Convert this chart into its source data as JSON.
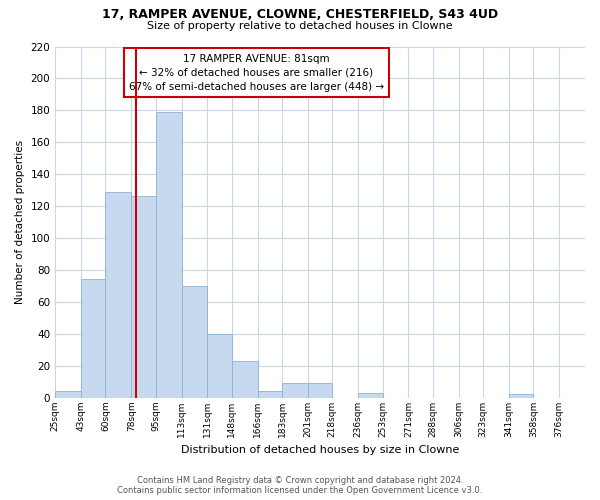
{
  "title": "17, RAMPER AVENUE, CLOWNE, CHESTERFIELD, S43 4UD",
  "subtitle": "Size of property relative to detached houses in Clowne",
  "xlabel": "Distribution of detached houses by size in Clowne",
  "ylabel": "Number of detached properties",
  "bar_color": "#c6d9ee",
  "bar_edge_color": "#8ab4d4",
  "bar_heights": [
    4,
    74,
    129,
    126,
    179,
    70,
    40,
    23,
    4,
    9,
    9,
    0,
    3,
    0,
    0,
    0,
    0,
    0,
    2
  ],
  "bin_labels": [
    "25sqm",
    "43sqm",
    "60sqm",
    "78sqm",
    "95sqm",
    "113sqm",
    "131sqm",
    "148sqm",
    "166sqm",
    "183sqm",
    "201sqm",
    "218sqm",
    "236sqm",
    "253sqm",
    "271sqm",
    "288sqm",
    "306sqm",
    "323sqm",
    "341sqm",
    "358sqm",
    "376sqm"
  ],
  "bin_edges": [
    25,
    43,
    60,
    78,
    95,
    113,
    131,
    148,
    166,
    183,
    201,
    218,
    236,
    253,
    271,
    288,
    306,
    323,
    341,
    358,
    376
  ],
  "ylim": [
    0,
    220
  ],
  "yticks": [
    0,
    20,
    40,
    60,
    80,
    100,
    120,
    140,
    160,
    180,
    200,
    220
  ],
  "vline_x": 81,
  "vline_color": "#cc0000",
  "annotation_title": "17 RAMPER AVENUE: 81sqm",
  "annotation_line1": "← 32% of detached houses are smaller (216)",
  "annotation_line2": "67% of semi-detached houses are larger (448) →",
  "annotation_box_color": "#ffffff",
  "annotation_border_color": "#cc0000",
  "footer_line1": "Contains HM Land Registry data © Crown copyright and database right 2024.",
  "footer_line2": "Contains public sector information licensed under the Open Government Licence v3.0.",
  "background_color": "#ffffff",
  "grid_color": "#c8d8e8"
}
